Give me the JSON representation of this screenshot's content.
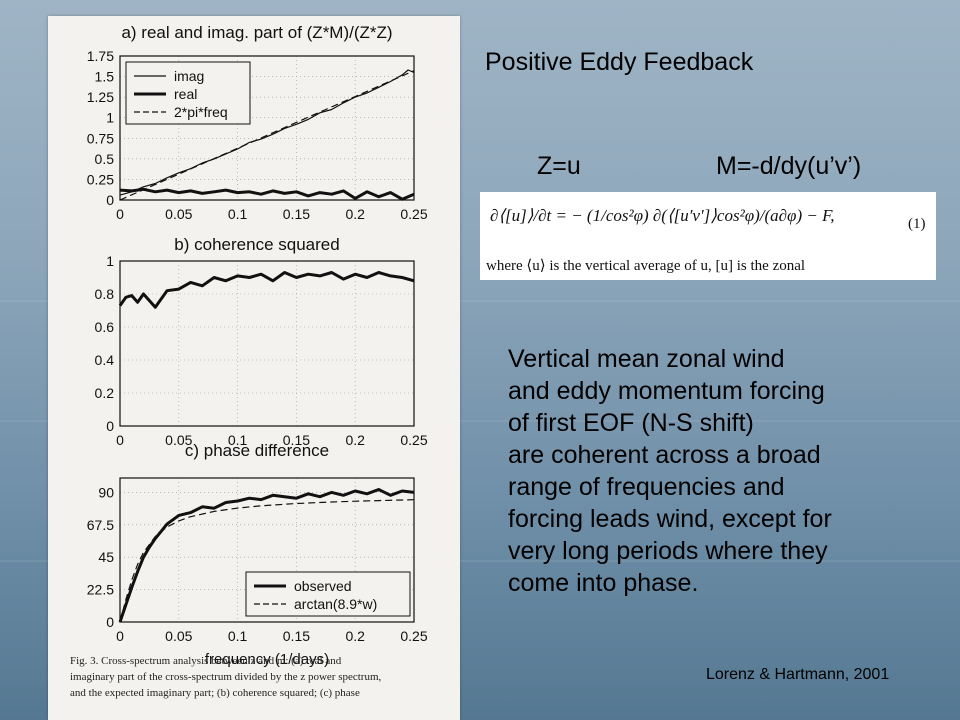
{
  "slide": {
    "title": "Positive Eddy Feedback",
    "z_definition": "Z=u",
    "m_definition": "M=-d/dy(u’v’)",
    "equation": {
      "text": "∂⟨[u]⟩/∂t = − (1/cos²φ) ∂(⟨[u′v′]⟩cos²φ)/(a∂φ) − F,",
      "number": "(1)",
      "footnote": "where ⟨u⟩ is the vertical average of u, [u] is the zonal"
    },
    "description": [
      "Vertical mean zonal wind",
      "and eddy momentum forcing",
      "of first EOF (N-S shift)",
      "are coherent across a broad",
      "range of frequencies and",
      "forcing leads wind, except for",
      "very long periods where they",
      "come into phase."
    ],
    "citation": "Lorenz & Hartmann, 2001"
  },
  "figure": {
    "caption": [
      "Fig. 3. Cross-spectrum analysis between z and m: (a) real and",
      "imaginary part of the cross-spectrum divided by the z power spectrum,",
      "and the expected imaginary part; (b) coherence squared; (c) phase"
    ],
    "shared_xlabel": "frequency (1/days)"
  },
  "chart_data": [
    {
      "type": "line",
      "title": "a) real and imag. part of (Z*M)/(Z*Z)",
      "xlim": [
        0,
        0.25
      ],
      "ylim": [
        0,
        1.75
      ],
      "x_ticks": [
        "0",
        "0.05",
        "0.1",
        "0.15",
        "0.2",
        "0.25"
      ],
      "y_ticks": [
        "0",
        "0.25",
        "0.5",
        "0.75",
        "1",
        "1.25",
        "1.5",
        "1.75"
      ],
      "legend": [
        "imag",
        "real",
        "2*pi*freq"
      ],
      "legend_position": "top-left",
      "grid": true,
      "series": [
        {
          "name": "imag",
          "style": "thin",
          "x": [
            0,
            0.01,
            0.02,
            0.03,
            0.04,
            0.05,
            0.06,
            0.07,
            0.08,
            0.09,
            0.1,
            0.11,
            0.12,
            0.13,
            0.14,
            0.15,
            0.16,
            0.17,
            0.18,
            0.19,
            0.2,
            0.21,
            0.22,
            0.23,
            0.24,
            0.245,
            0.25
          ],
          "y": [
            0.06,
            0.1,
            0.16,
            0.2,
            0.27,
            0.33,
            0.38,
            0.45,
            0.5,
            0.56,
            0.62,
            0.7,
            0.74,
            0.8,
            0.87,
            0.92,
            0.98,
            1.06,
            1.1,
            1.18,
            1.25,
            1.3,
            1.37,
            1.44,
            1.52,
            1.58,
            1.55
          ]
        },
        {
          "name": "real",
          "style": "thick",
          "x": [
            0,
            0.01,
            0.02,
            0.03,
            0.04,
            0.05,
            0.06,
            0.07,
            0.08,
            0.09,
            0.1,
            0.11,
            0.12,
            0.13,
            0.14,
            0.15,
            0.16,
            0.17,
            0.18,
            0.19,
            0.2,
            0.21,
            0.22,
            0.23,
            0.24,
            0.25
          ],
          "y": [
            0.12,
            0.11,
            0.13,
            0.1,
            0.12,
            0.09,
            0.11,
            0.08,
            0.1,
            0.12,
            0.09,
            0.1,
            0.07,
            0.11,
            0.08,
            0.1,
            0.05,
            0.09,
            0.07,
            0.11,
            0.02,
            0.1,
            0.04,
            0.09,
            0.01,
            0.07
          ]
        },
        {
          "name": "2*pi*freq",
          "style": "dashed",
          "x": [
            0,
            0.25
          ],
          "y": [
            0,
            1.571
          ]
        }
      ]
    },
    {
      "type": "line",
      "title": "b) coherence squared",
      "xlim": [
        0,
        0.25
      ],
      "ylim": [
        0,
        1
      ],
      "x_ticks": [
        "0",
        "0.05",
        "0.1",
        "0.15",
        "0.2",
        "0.25"
      ],
      "y_ticks": [
        "0",
        "0.2",
        "0.4",
        "0.6",
        "0.8",
        "1"
      ],
      "grid": true,
      "series": [
        {
          "name": "",
          "style": "thick",
          "x": [
            0,
            0.005,
            0.01,
            0.015,
            0.02,
            0.03,
            0.04,
            0.05,
            0.06,
            0.07,
            0.08,
            0.09,
            0.1,
            0.11,
            0.12,
            0.13,
            0.14,
            0.15,
            0.16,
            0.17,
            0.18,
            0.19,
            0.2,
            0.21,
            0.22,
            0.23,
            0.24,
            0.25
          ],
          "y": [
            0.73,
            0.78,
            0.79,
            0.75,
            0.8,
            0.72,
            0.82,
            0.83,
            0.87,
            0.85,
            0.9,
            0.88,
            0.91,
            0.9,
            0.92,
            0.88,
            0.93,
            0.9,
            0.92,
            0.91,
            0.93,
            0.89,
            0.92,
            0.9,
            0.93,
            0.91,
            0.9,
            0.88
          ]
        }
      ]
    },
    {
      "type": "line",
      "title": "c) phase difference",
      "xlabel": "frequency (1/days)",
      "xlim": [
        0,
        0.25
      ],
      "ylim": [
        0,
        100
      ],
      "x_ticks": [
        "0",
        "0.05",
        "0.1",
        "0.15",
        "0.2",
        "0.25"
      ],
      "y_ticks": [
        "0",
        "22.5",
        "45",
        "67.5",
        "90"
      ],
      "legend": [
        "observed",
        "arctan(8.9*w)"
      ],
      "legend_position": "bottom-right",
      "grid": true,
      "series": [
        {
          "name": "observed",
          "style": "thick",
          "x": [
            0,
            0.005,
            0.01,
            0.015,
            0.02,
            0.025,
            0.03,
            0.035,
            0.04,
            0.05,
            0.06,
            0.07,
            0.08,
            0.09,
            0.1,
            0.11,
            0.12,
            0.13,
            0.14,
            0.15,
            0.16,
            0.17,
            0.18,
            0.19,
            0.2,
            0.21,
            0.22,
            0.23,
            0.24,
            0.25
          ],
          "y": [
            0,
            12,
            24,
            35,
            45,
            52,
            58,
            63,
            68,
            74,
            76,
            80,
            79,
            83,
            84,
            86,
            85,
            88,
            87,
            86,
            89,
            87,
            90,
            88,
            91,
            89,
            92,
            88,
            91,
            90
          ]
        },
        {
          "name": "arctan(8.9*w)",
          "style": "dashed",
          "x": [
            0,
            0.005,
            0.01,
            0.015,
            0.02,
            0.03,
            0.04,
            0.05,
            0.06,
            0.08,
            0.1,
            0.12,
            0.15,
            0.18,
            0.2,
            0.22,
            0.25
          ],
          "y": [
            0,
            15.7,
            29.2,
            40.0,
            48.3,
            59.4,
            66.0,
            70.2,
            73.1,
            76.8,
            79.1,
            80.7,
            82.3,
            83.3,
            83.9,
            84.3,
            84.9
          ]
        }
      ]
    }
  ]
}
